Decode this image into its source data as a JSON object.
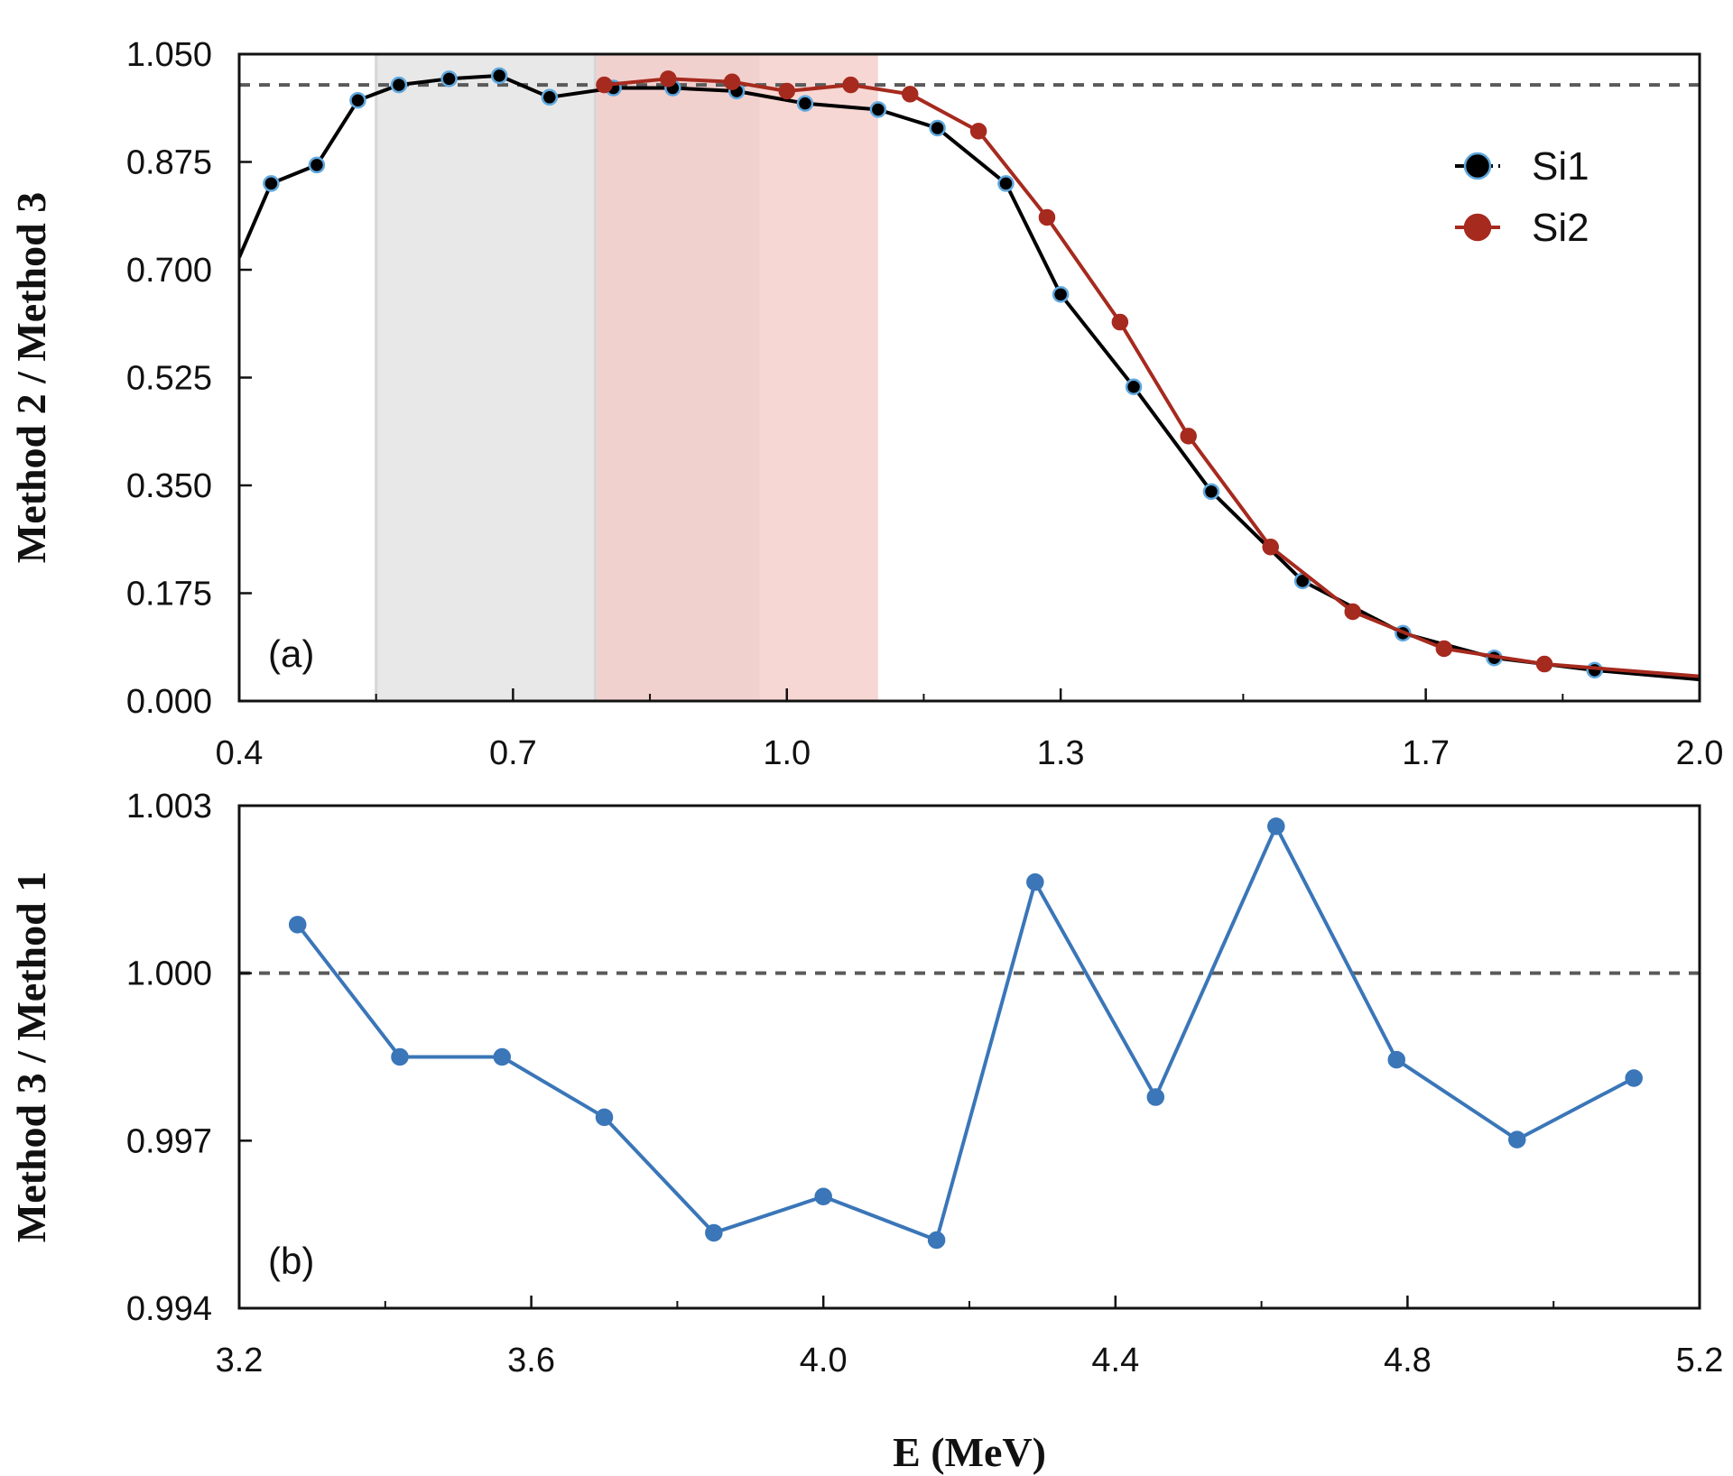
{
  "chart_data": [
    {
      "type": "line",
      "panel_label": "(a)",
      "xlabel": "",
      "ylabel": "Method 2 / Method 3",
      "xlim": [
        0.4,
        2.0
      ],
      "ylim": [
        0.0,
        1.05
      ],
      "x_ticks": [
        0.4,
        0.7,
        1.0,
        1.3,
        1.7,
        2.0
      ],
      "x_tick_labels": [
        "0.4",
        "0.7",
        "1.0",
        "1.3",
        "1.7",
        "2.0"
      ],
      "y_ticks": [
        0.0,
        0.175,
        0.35,
        0.525,
        0.7,
        0.875,
        1.05
      ],
      "y_tick_labels": [
        "0.000",
        "0.175",
        "0.350",
        "0.525",
        "0.700",
        "0.875",
        "1.050"
      ],
      "reference_line": 1.0,
      "legend_position": "top-right",
      "shaded_regions": [
        {
          "x_range": [
            0.55,
            0.97
          ],
          "color": "#e6e6e6"
        },
        {
          "x_range": [
            0.79,
            1.1
          ],
          "color": "#f4c9c6"
        }
      ],
      "series": [
        {
          "name": "Si1",
          "color": "#000000",
          "marker_edge": "#5fa8de",
          "x": [
            0.4,
            0.435,
            0.485,
            0.53,
            0.575,
            0.63,
            0.685,
            0.74,
            0.81,
            0.875,
            0.945,
            1.02,
            1.1,
            1.165,
            1.24,
            1.3,
            1.38,
            1.465,
            1.565,
            1.675,
            1.775,
            1.885,
            2.0
          ],
          "y": [
            0.72,
            0.84,
            0.87,
            0.975,
            1.0,
            1.01,
            1.015,
            0.98,
            0.995,
            0.995,
            0.99,
            0.97,
            0.96,
            0.93,
            0.84,
            0.66,
            0.51,
            0.34,
            0.195,
            0.11,
            0.07,
            0.05,
            0.035
          ]
        },
        {
          "name": "Si2",
          "color": "#a62a1e",
          "marker_edge": "#a62a1e",
          "x": [
            0.8,
            0.87,
            0.94,
            1.0,
            1.07,
            1.135,
            1.21,
            1.285,
            1.365,
            1.44,
            1.53,
            1.62,
            1.72,
            1.83,
            2.0
          ],
          "y": [
            1.0,
            1.01,
            1.005,
            0.99,
            1.0,
            0.985,
            0.925,
            0.785,
            0.615,
            0.43,
            0.25,
            0.145,
            0.085,
            0.06,
            0.04
          ]
        }
      ]
    },
    {
      "type": "line",
      "panel_label": "(b)",
      "xlabel": "E (MeV)",
      "ylabel": "Method 3 / Method 1",
      "xlim": [
        3.2,
        5.2
      ],
      "ylim": [
        0.994,
        1.003
      ],
      "x_ticks": [
        3.2,
        3.6,
        4.0,
        4.4,
        4.8,
        5.2
      ],
      "x_tick_labels": [
        "3.2",
        "3.6",
        "4.0",
        "4.4",
        "4.8",
        "5.2"
      ],
      "y_ticks": [
        0.994,
        0.997,
        1.0,
        1.003
      ],
      "y_tick_labels": [
        "0.994",
        "0.997",
        "1.000",
        "1.003"
      ],
      "reference_line": 1.0,
      "series": [
        {
          "name": "",
          "color": "#3a76b8",
          "marker_edge": "#3a76b8",
          "x": [
            3.28,
            3.42,
            3.56,
            3.7,
            3.85,
            4.0,
            4.155,
            4.29,
            4.455,
            4.62,
            4.785,
            4.95,
            5.11
          ],
          "y": [
            1.00087,
            0.9985,
            0.9985,
            0.99742,
            0.99535,
            0.996,
            0.99522,
            1.00163,
            0.99778,
            1.00263,
            0.99845,
            0.99702,
            0.99812
          ]
        }
      ]
    }
  ]
}
